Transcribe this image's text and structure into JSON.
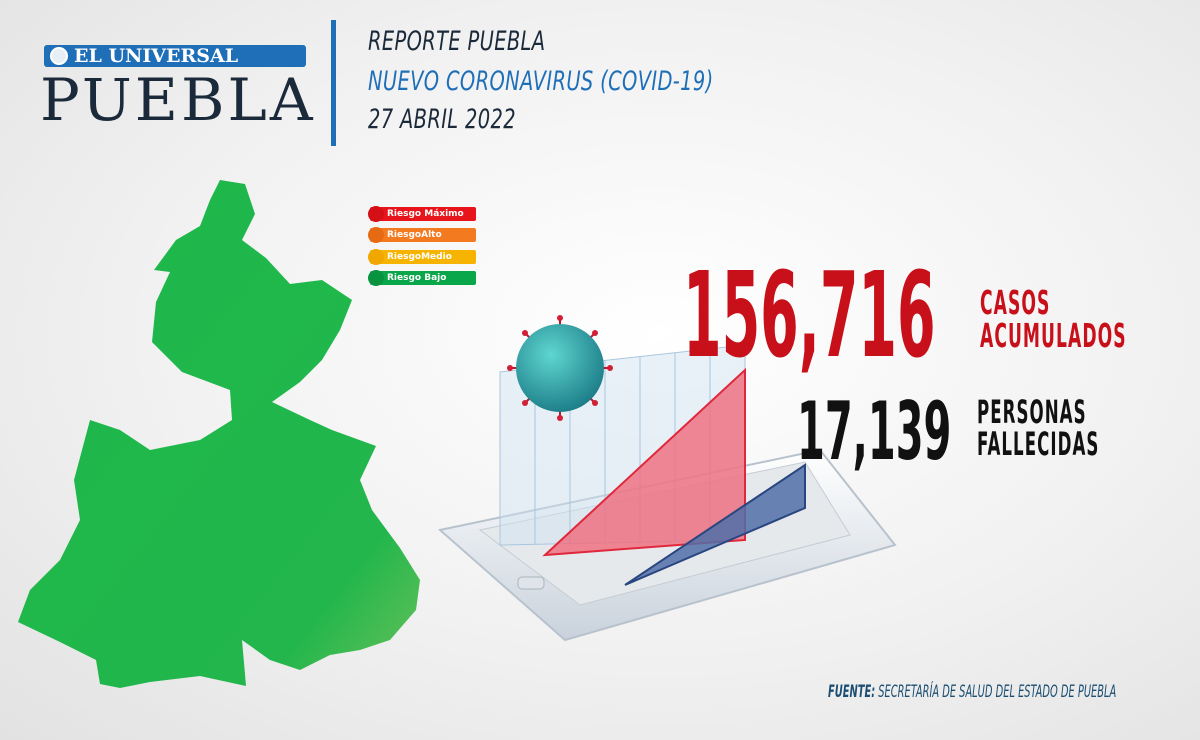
{
  "logo": {
    "top": "EL UNIVERSAL",
    "main": "PUEBLA"
  },
  "header": {
    "line1": "REPORTE PUEBLA",
    "line2": "NUEVO CORONAVIRUS (COVID-19)",
    "line3": "27 ABRIL 2022"
  },
  "legend": [
    {
      "label": "Riesgo Máximo",
      "color": "#e8141b"
    },
    {
      "label": "RiesgoAlto",
      "color": "#f47a20"
    },
    {
      "label": "RiesgoMedio",
      "color": "#f6b400"
    },
    {
      "label": "Riesgo Bajo",
      "color": "#0aa64a"
    }
  ],
  "map": {
    "risk_level": "Riesgo Bajo",
    "color": "#1db84a"
  },
  "stats": {
    "cases_value": "156,716",
    "cases_label1": "CASOS",
    "cases_label2": "ACUMULADOS",
    "deaths_value": "17,139",
    "deaths_label1": "PERSONAS",
    "deaths_label2": "FALLECIDAS"
  },
  "colors": {
    "accent_blue": "#1f6fb8",
    "cases_red": "#c8101a",
    "navy": "#1b2a3a"
  },
  "footer": {
    "prefix": "FUENTE:",
    "source": "SECRETARÍA DE SALUD DEL ESTADO DE PUEBLA"
  }
}
